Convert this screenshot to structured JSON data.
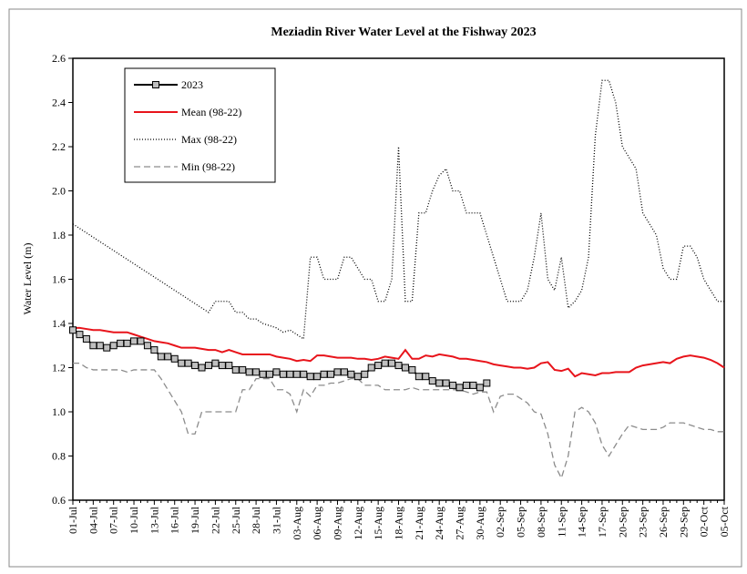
{
  "chart_data": {
    "type": "line",
    "title": "Meziadin River Water Level at the Fishway 2023",
    "y_label": "Water Level (m)",
    "ylim": [
      0.6,
      2.6
    ],
    "yticks": [
      0.6,
      0.8,
      {
        "value": 1,
        "label": "1.0"
      },
      1.2,
      1.4,
      1.6,
      1.8,
      {
        "value": 2,
        "label": "2.0"
      },
      2.2,
      2.4,
      2.6
    ],
    "grid": false,
    "legend": "upper left",
    "categories": [
      "01-Jul",
      null,
      null,
      "04-Jul",
      null,
      null,
      "07-Jul",
      null,
      null,
      "10-Jul",
      null,
      null,
      "13-Jul",
      null,
      null,
      "16-Jul",
      null,
      null,
      "19-Jul",
      null,
      null,
      "22-Jul",
      null,
      null,
      "25-Jul",
      null,
      null,
      "28-Jul",
      null,
      null,
      "31-Jul",
      null,
      null,
      "03-Aug",
      null,
      null,
      "06-Aug",
      null,
      null,
      "09-Aug",
      null,
      null,
      "12-Aug",
      null,
      null,
      "15-Aug",
      null,
      null,
      "18-Aug",
      null,
      null,
      "21-Aug",
      null,
      null,
      "24-Aug",
      null,
      null,
      "27-Aug",
      null,
      null,
      "30-Aug",
      null,
      null,
      "02-Sep",
      null,
      null,
      "05-Sep",
      null,
      null,
      "08-Sep",
      null,
      null,
      "11-Sep",
      null,
      null,
      "14-Sep",
      null,
      null,
      "17-Sep",
      null,
      null,
      "20-Sep",
      null,
      null,
      "23-Sep",
      null,
      null,
      "26-Sep",
      null,
      null,
      "29-Sep",
      null,
      null,
      "02-Oct",
      null,
      null,
      "05-Oct"
    ],
    "series": [
      {
        "name": "2023",
        "color": "#000000",
        "dash": "solid",
        "marker": "square",
        "marker_color": "#bfbfbf",
        "values": [
          1.37,
          1.35,
          1.33,
          1.3,
          1.3,
          1.29,
          1.3,
          1.31,
          1.31,
          1.32,
          1.32,
          1.3,
          1.28,
          1.25,
          1.25,
          1.24,
          1.22,
          1.22,
          1.21,
          1.2,
          1.21,
          1.22,
          1.21,
          1.21,
          1.19,
          1.19,
          1.18,
          1.18,
          1.17,
          1.17,
          1.18,
          1.17,
          1.17,
          1.17,
          1.17,
          1.16,
          1.16,
          1.17,
          1.17,
          1.18,
          1.18,
          1.17,
          1.16,
          1.17,
          1.2,
          1.21,
          1.22,
          1.22,
          1.21,
          1.2,
          1.19,
          1.16,
          1.16,
          1.14,
          1.13,
          1.13,
          1.12,
          1.11,
          1.12,
          1.12,
          1.11,
          1.13,
          null,
          null,
          null,
          null,
          null,
          null,
          null,
          null,
          null,
          null,
          null,
          null,
          null,
          null,
          null,
          null,
          null,
          null,
          null,
          null,
          null,
          null,
          null,
          null,
          null,
          null,
          null,
          null,
          null,
          null,
          null,
          null,
          null,
          null,
          null
        ]
      },
      {
        "name": "Mean (98-22)",
        "color": "#e8141b",
        "dash": "solid",
        "values": [
          1.38,
          1.38,
          1.375,
          1.37,
          1.37,
          1.365,
          1.36,
          1.36,
          1.36,
          1.35,
          1.34,
          1.33,
          1.32,
          1.315,
          1.31,
          1.3,
          1.29,
          1.29,
          1.29,
          1.285,
          1.28,
          1.28,
          1.27,
          1.28,
          1.27,
          1.26,
          1.26,
          1.26,
          1.26,
          1.26,
          1.25,
          1.245,
          1.24,
          1.23,
          1.235,
          1.23,
          1.255,
          1.255,
          1.25,
          1.245,
          1.245,
          1.245,
          1.24,
          1.24,
          1.235,
          1.24,
          1.25,
          1.245,
          1.24,
          1.28,
          1.24,
          1.24,
          1.255,
          1.25,
          1.26,
          1.255,
          1.25,
          1.24,
          1.24,
          1.235,
          1.23,
          1.225,
          1.215,
          1.21,
          1.205,
          1.2,
          1.2,
          1.195,
          1.2,
          1.22,
          1.225,
          1.19,
          1.185,
          1.195,
          1.16,
          1.175,
          1.17,
          1.165,
          1.175,
          1.175,
          1.18,
          1.18,
          1.18,
          1.2,
          1.21,
          1.215,
          1.22,
          1.225,
          1.22,
          1.24,
          1.25,
          1.255,
          1.25,
          1.245,
          1.235,
          1.22,
          1.2
        ]
      },
      {
        "name": "Max (98-22)",
        "color": "#000000",
        "dash": "dotted",
        "values": [
          1.85,
          1.83,
          1.81,
          1.79,
          1.77,
          1.75,
          1.73,
          1.71,
          1.69,
          1.67,
          1.65,
          1.63,
          1.61,
          1.59,
          1.57,
          1.55,
          1.53,
          1.51,
          1.49,
          1.47,
          1.45,
          1.5,
          1.5,
          1.5,
          1.45,
          1.45,
          1.42,
          1.42,
          1.4,
          1.39,
          1.38,
          1.36,
          1.37,
          1.35,
          1.33,
          1.7,
          1.7,
          1.6,
          1.6,
          1.6,
          1.7,
          1.7,
          1.65,
          1.6,
          1.6,
          1.5,
          1.5,
          1.6,
          2.2,
          1.5,
          1.5,
          1.9,
          1.9,
          2.0,
          2.07,
          2.1,
          2.0,
          2.0,
          1.9,
          1.9,
          1.9,
          1.8,
          1.7,
          1.6,
          1.5,
          1.5,
          1.5,
          1.55,
          1.7,
          1.9,
          1.6,
          1.55,
          1.7,
          1.47,
          1.5,
          1.55,
          1.7,
          2.25,
          2.5,
          2.5,
          2.4,
          2.2,
          2.15,
          2.1,
          1.9,
          1.85,
          1.8,
          1.65,
          1.6,
          1.6,
          1.75,
          1.75,
          1.7,
          1.6,
          1.55,
          1.5,
          1.5
        ]
      },
      {
        "name": "Min (98-22)",
        "color": "#8c8c8c",
        "dash": "dashed",
        "values": [
          1.22,
          1.22,
          1.2,
          1.19,
          1.19,
          1.19,
          1.19,
          1.19,
          1.18,
          1.19,
          1.19,
          1.19,
          1.19,
          1.15,
          1.1,
          1.05,
          1.0,
          0.9,
          0.9,
          1.0,
          1.0,
          1.0,
          1.0,
          1.0,
          1.0,
          1.1,
          1.1,
          1.15,
          1.15,
          1.15,
          1.1,
          1.1,
          1.08,
          1.0,
          1.1,
          1.07,
          1.12,
          1.12,
          1.13,
          1.13,
          1.14,
          1.15,
          1.15,
          1.12,
          1.12,
          1.12,
          1.1,
          1.1,
          1.1,
          1.1,
          1.11,
          1.1,
          1.1,
          1.1,
          1.1,
          1.1,
          1.1,
          1.1,
          1.09,
          1.08,
          1.09,
          1.09,
          1.0,
          1.07,
          1.08,
          1.08,
          1.06,
          1.04,
          1.0,
          0.99,
          0.9,
          0.76,
          0.7,
          0.8,
          1.0,
          1.02,
          1.0,
          0.95,
          0.85,
          0.8,
          0.85,
          0.9,
          0.94,
          0.93,
          0.92,
          0.92,
          0.92,
          0.93,
          0.95,
          0.95,
          0.95,
          0.94,
          0.93,
          0.92,
          0.92,
          0.91,
          0.91
        ]
      }
    ]
  }
}
